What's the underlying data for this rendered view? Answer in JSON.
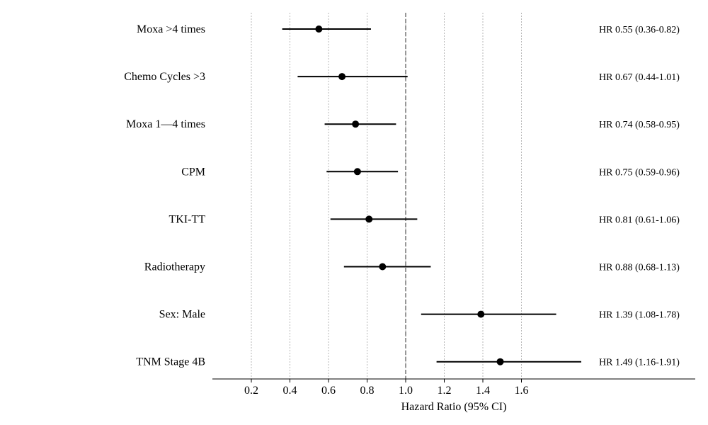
{
  "chart_data": {
    "type": "forest",
    "title": "",
    "xlabel": "Hazard Ratio (95% CI)",
    "ylabel": "",
    "xlim": [
      0,
      2.5
    ],
    "xticks": [
      0.2,
      0.4,
      0.6,
      0.8,
      1.0,
      1.2,
      1.4,
      1.6
    ],
    "tick_labels": [
      "0.2",
      "0.4",
      "0.6",
      "0.8",
      "1.0",
      "1.2",
      "1.4",
      "1.6"
    ],
    "reference_line": 1.0,
    "grid": "vertical dotted",
    "rows": [
      {
        "label": "Moxa >4 times",
        "hr": 0.55,
        "lower": 0.36,
        "upper": 0.82,
        "text": "HR 0.55 (0.36-0.82)"
      },
      {
        "label": "Chemo Cycles >3",
        "hr": 0.67,
        "lower": 0.44,
        "upper": 1.01,
        "text": "HR 0.67 (0.44-1.01)"
      },
      {
        "label": "Moxa 1—4 times",
        "hr": 0.74,
        "lower": 0.58,
        "upper": 0.95,
        "text": "HR 0.74 (0.58-0.95)"
      },
      {
        "label": "CPM",
        "hr": 0.75,
        "lower": 0.59,
        "upper": 0.96,
        "text": "HR 0.75 (0.59-0.96)"
      },
      {
        "label": "TKI-TT",
        "hr": 0.81,
        "lower": 0.61,
        "upper": 1.06,
        "text": "HR 0.81 (0.61-1.06)"
      },
      {
        "label": "Radiotherapy",
        "hr": 0.88,
        "lower": 0.68,
        "upper": 1.13,
        "text": "HR 0.88 (0.68-1.13)"
      },
      {
        "label": "Sex: Male",
        "hr": 1.39,
        "lower": 1.08,
        "upper": 1.78,
        "text": "HR 1.39 (1.08-1.78)"
      },
      {
        "label": "TNM Stage 4B",
        "hr": 1.49,
        "lower": 1.16,
        "upper": 1.91,
        "text": "HR 1.49 (1.16-1.91)"
      }
    ]
  }
}
